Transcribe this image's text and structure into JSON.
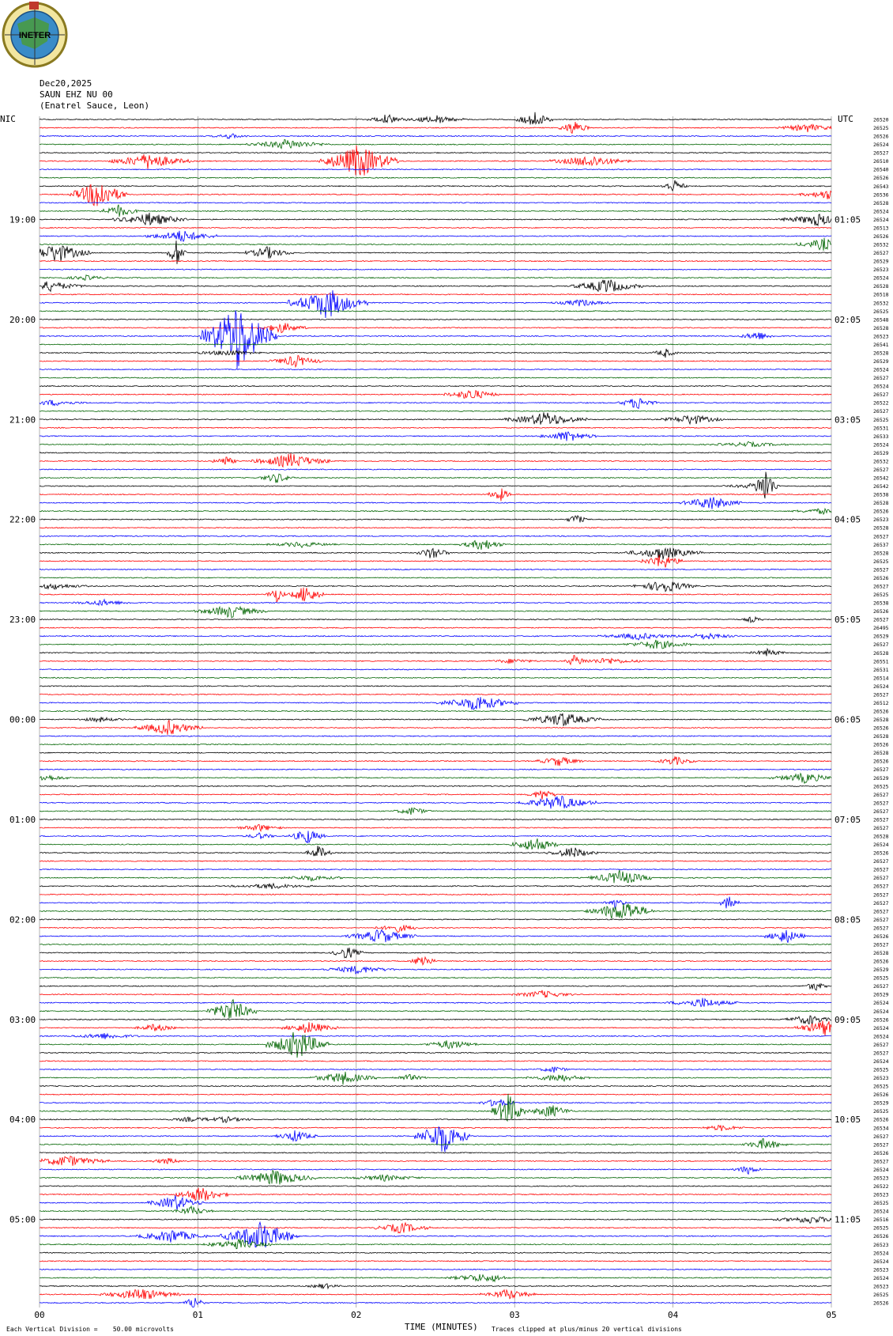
{
  "header": {
    "date": "Dec20,2025",
    "station": "SAUN EHZ NU 00",
    "location": "(Enatrel Sauce, Leon)",
    "logo_text": "INETER"
  },
  "left_tz": "NIC",
  "right_tz": "UTC",
  "left_hours": [
    "19:00",
    "20:00",
    "21:00",
    "22:00",
    "23:00",
    "00:00",
    "01:00",
    "02:00",
    "03:00",
    "04:00",
    "05:00"
  ],
  "right_hours": [
    "01:05",
    "02:05",
    "03:05",
    "04:05",
    "05:05",
    "06:05",
    "07:05",
    "08:05",
    "09:05",
    "10:05",
    "11:05"
  ],
  "x_ticks": [
    "00",
    "01",
    "02",
    "03",
    "04",
    "05"
  ],
  "xlabel": "TIME (MINUTES)",
  "footer": {
    "scale_note": "Each Vertical Division =    50.00 microvolts",
    "clip_note": "Traces clipped at plus/minus 20 vertical divisions"
  },
  "colors": {
    "trace_cycle": [
      "#000000",
      "#ff0000",
      "#0000ff",
      "#006400"
    ],
    "gridline": "#808080"
  },
  "chart_data": {
    "type": "line",
    "title": "",
    "xlabel": "TIME (MINUTES)",
    "xlim": [
      0,
      5
    ],
    "trace_count": 143,
    "minutes_per_trace": 5,
    "trace_labels": [
      "26520",
      "26525",
      "26526",
      "26524",
      "26527",
      "26510",
      "26540",
      "26526",
      "26543",
      "26536",
      "26528",
      "26524",
      "26524",
      "26513",
      "26526",
      "26532",
      "26527",
      "26529",
      "26523",
      "26524",
      "26528",
      "26518",
      "26532",
      "26525",
      "26548",
      "26528",
      "26523",
      "26541",
      "26528",
      "26529",
      "26524",
      "26527",
      "26524",
      "26527",
      "26522",
      "26527",
      "26525",
      "26531",
      "26533",
      "26524",
      "26529",
      "26532",
      "26527",
      "26542",
      "26542",
      "26538",
      "26528",
      "26526",
      "26523",
      "26528",
      "26527",
      "26537",
      "26528",
      "26525",
      "26527",
      "26526",
      "26527",
      "26525",
      "26538",
      "26526",
      "26527",
      "26495",
      "26529",
      "26527",
      "26528",
      "26551",
      "26531",
      "26514",
      "26524",
      "26527",
      "26512",
      "26526",
      "26528",
      "26526",
      "26528",
      "26526",
      "26528",
      "26526",
      "26527",
      "26529",
      "26525",
      "26527",
      "26527",
      "26527",
      "26527",
      "26527",
      "26528",
      "26524",
      "26526",
      "26527",
      "26527",
      "26527",
      "26527",
      "26527",
      "26527",
      "26527",
      "26527",
      "26527",
      "26526",
      "26527",
      "26528",
      "26526",
      "26529",
      "26525",
      "26527",
      "26529",
      "26524",
      "26524",
      "26526",
      "26524",
      "26524",
      "26527",
      "26527",
      "26524",
      "26525",
      "26523",
      "26525",
      "26526",
      "26529",
      "26525",
      "26526",
      "26534",
      "26527",
      "26527",
      "26526",
      "26527",
      "26524",
      "26523",
      "26522",
      "26523",
      "26525",
      "26524",
      "26516",
      "26525",
      "26526",
      "26523",
      "26524",
      "26524",
      "26523",
      "26524",
      "26523",
      "26525",
      "26526"
    ]
  }
}
